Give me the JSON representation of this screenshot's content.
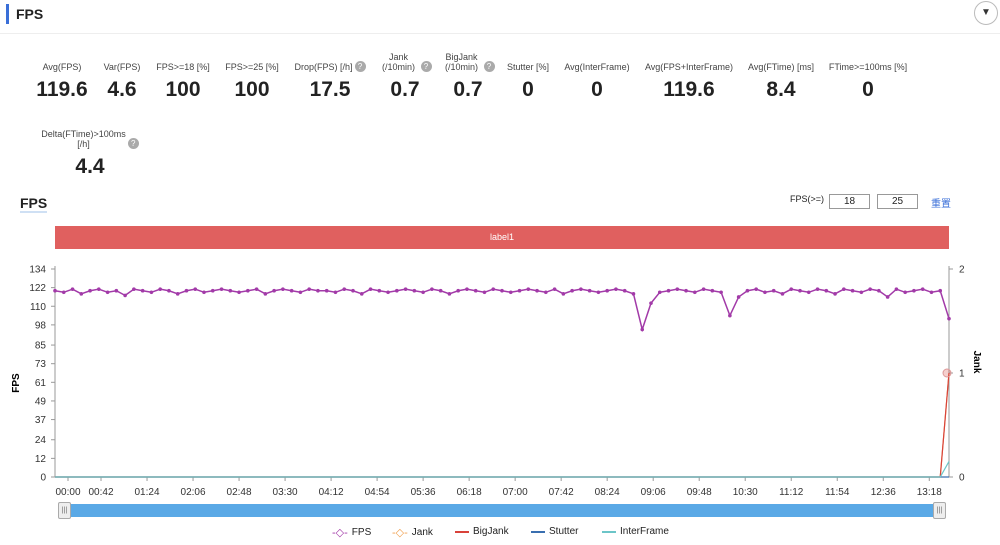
{
  "header": {
    "title": "FPS",
    "dropdown_icon": "chevron-down-icon"
  },
  "stats": [
    {
      "label": "Avg(FPS)",
      "value": "119.6"
    },
    {
      "label": "Var(FPS)",
      "value": "4.6"
    },
    {
      "label": "FPS>=18 [%]",
      "value": "100"
    },
    {
      "label": "FPS>=25 [%]",
      "value": "100"
    },
    {
      "label": "Drop(FPS) [/h]",
      "value": "17.5",
      "help": true
    },
    {
      "label": "Jank (/10min)",
      "value": "0.7",
      "help": true
    },
    {
      "label": "BigJank (/10min)",
      "value": "0.7",
      "help": true
    },
    {
      "label": "Stutter [%]",
      "value": "0"
    },
    {
      "label": "Avg(InterFrame)",
      "value": "0"
    },
    {
      "label": "Avg(FPS+InterFrame)",
      "value": "119.6"
    },
    {
      "label": "Avg(FTime) [ms]",
      "value": "8.4"
    },
    {
      "label": "FTime>=100ms [%]",
      "value": "0"
    },
    {
      "label": "Delta(FTime)>100ms [/h]",
      "value": "4.4",
      "help": true
    }
  ],
  "chart_section": {
    "title": "FPS",
    "fps_threshold_label": "FPS(>=)",
    "threshold1": "18",
    "threshold2": "25",
    "reset_label": "重置",
    "label_bar": "label1"
  },
  "chart_data": {
    "type": "line",
    "ylabel": "FPS",
    "y2label": "Jank",
    "yticks": [
      0,
      12,
      24,
      37,
      49,
      61,
      73,
      85,
      98,
      110,
      122,
      134
    ],
    "ylim": [
      0,
      134
    ],
    "y2ticks": [
      0,
      1,
      2
    ],
    "y2lim": [
      0,
      2
    ],
    "xticks": [
      "00:00",
      "00:42",
      "01:24",
      "02:06",
      "02:48",
      "03:30",
      "04:12",
      "04:54",
      "05:36",
      "06:18",
      "07:00",
      "07:42",
      "08:24",
      "09:06",
      "09:48",
      "10:30",
      "11:12",
      "11:54",
      "12:36",
      "13:18"
    ],
    "xlim_seconds": [
      0,
      816
    ],
    "fps_interval_seconds": 8,
    "series": [
      {
        "name": "FPS",
        "color": "#a23aa8",
        "axis": "left",
        "values": [
          120,
          119,
          121,
          118,
          120,
          121,
          119,
          120,
          117,
          121,
          120,
          119,
          121,
          120,
          118,
          120,
          121,
          119,
          120,
          121,
          120,
          119,
          120,
          121,
          118,
          120,
          121,
          120,
          119,
          121,
          120,
          120,
          119,
          121,
          120,
          118,
          121,
          120,
          119,
          120,
          121,
          120,
          119,
          121,
          120,
          118,
          120,
          121,
          120,
          119,
          121,
          120,
          119,
          120,
          121,
          120,
          119,
          121,
          118,
          120,
          121,
          120,
          119,
          120,
          121,
          120,
          118,
          95,
          112,
          119,
          120,
          121,
          120,
          119,
          121,
          120,
          119,
          104,
          116,
          120,
          121,
          119,
          120,
          118,
          121,
          120,
          119,
          121,
          120,
          118,
          121,
          120,
          119,
          121,
          120,
          116,
          121,
          119,
          120,
          121,
          119,
          120,
          102
        ]
      },
      {
        "name": "Jank",
        "color": "#f0a050",
        "axis": "right",
        "points": [
          [
            0,
            0
          ],
          [
            808,
            0
          ],
          [
            816,
            1
          ]
        ]
      },
      {
        "name": "BigJank",
        "color": "#d9423a",
        "axis": "right",
        "points": [
          [
            0,
            0
          ],
          [
            808,
            0
          ],
          [
            816,
            1
          ]
        ]
      },
      {
        "name": "Stutter",
        "color": "#3a6fb0",
        "axis": "right",
        "points": [
          [
            0,
            0
          ],
          [
            816,
            0
          ]
        ]
      },
      {
        "name": "InterFrame",
        "color": "#6cc5c8",
        "axis": "right",
        "points": [
          [
            0,
            0
          ],
          [
            808,
            0
          ],
          [
            816,
            0.15
          ]
        ]
      }
    ],
    "grid": false,
    "legend": "bottom"
  }
}
